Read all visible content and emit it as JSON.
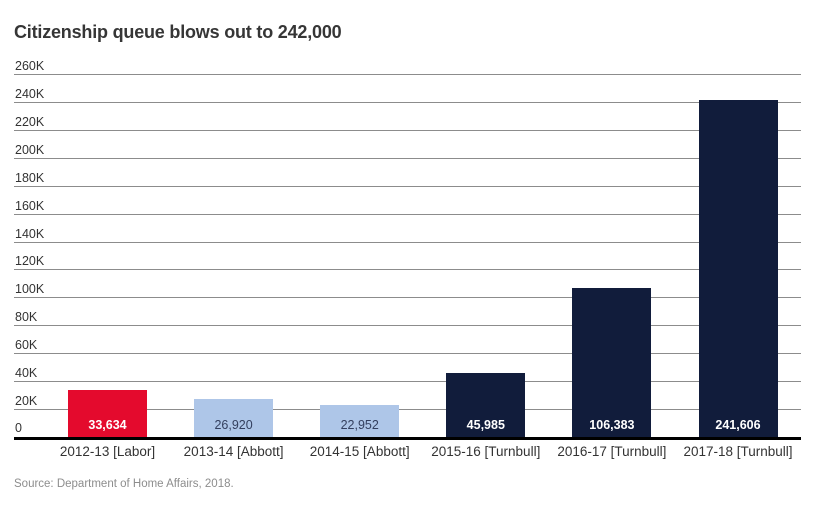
{
  "title": "Citizenship queue blows out to 242,000",
  "source": "Source: Department of Home Affairs, 2018.",
  "colors": {
    "labor_red": "#e40a2d",
    "abbott_light_blue": "#aec6e8",
    "turnbull_navy": "#111c3b",
    "gridline": "#8c8c8c",
    "axis": "#000000",
    "title_text": "#363636",
    "tick_text": "#333333",
    "source_text": "#8d8d8d",
    "value_label_dark": "#333f5e",
    "value_label_light": "#ffffff"
  },
  "chart_data": {
    "type": "bar",
    "title": "Citizenship queue blows out to 242,000",
    "xlabel": "",
    "ylabel": "",
    "categories": [
      "2012-13 [Labor]",
      "2013-14 [Abbott]",
      "2014-15 [Abbott]",
      "2015-16 [Turnbull]",
      "2016-17 [Turnbull]",
      "2017-18 [Turnbull]"
    ],
    "values": [
      33634,
      26920,
      22952,
      45985,
      106383,
      241606
    ],
    "value_labels": [
      "33,634",
      "26,920",
      "22,952",
      "45,985",
      "106,383",
      "241,606"
    ],
    "bar_colors": [
      "#e40a2d",
      "#aec6e8",
      "#aec6e8",
      "#111c3b",
      "#111c3b",
      "#111c3b"
    ],
    "value_label_colors": [
      "#ffffff",
      "#333f5e",
      "#333f5e",
      "#ffffff",
      "#ffffff",
      "#ffffff"
    ],
    "ylim": [
      0,
      260000
    ],
    "ytick_labels": [
      "260K",
      "240K",
      "220K",
      "200K",
      "180K",
      "160K",
      "140K",
      "120K",
      "100K",
      "80K",
      "60K",
      "40K",
      "20K",
      "0"
    ],
    "ytick_values": [
      260000,
      240000,
      220000,
      200000,
      180000,
      160000,
      140000,
      120000,
      100000,
      80000,
      60000,
      40000,
      20000,
      0
    ],
    "grid": "horizontal",
    "legend": "none",
    "annotations": []
  }
}
